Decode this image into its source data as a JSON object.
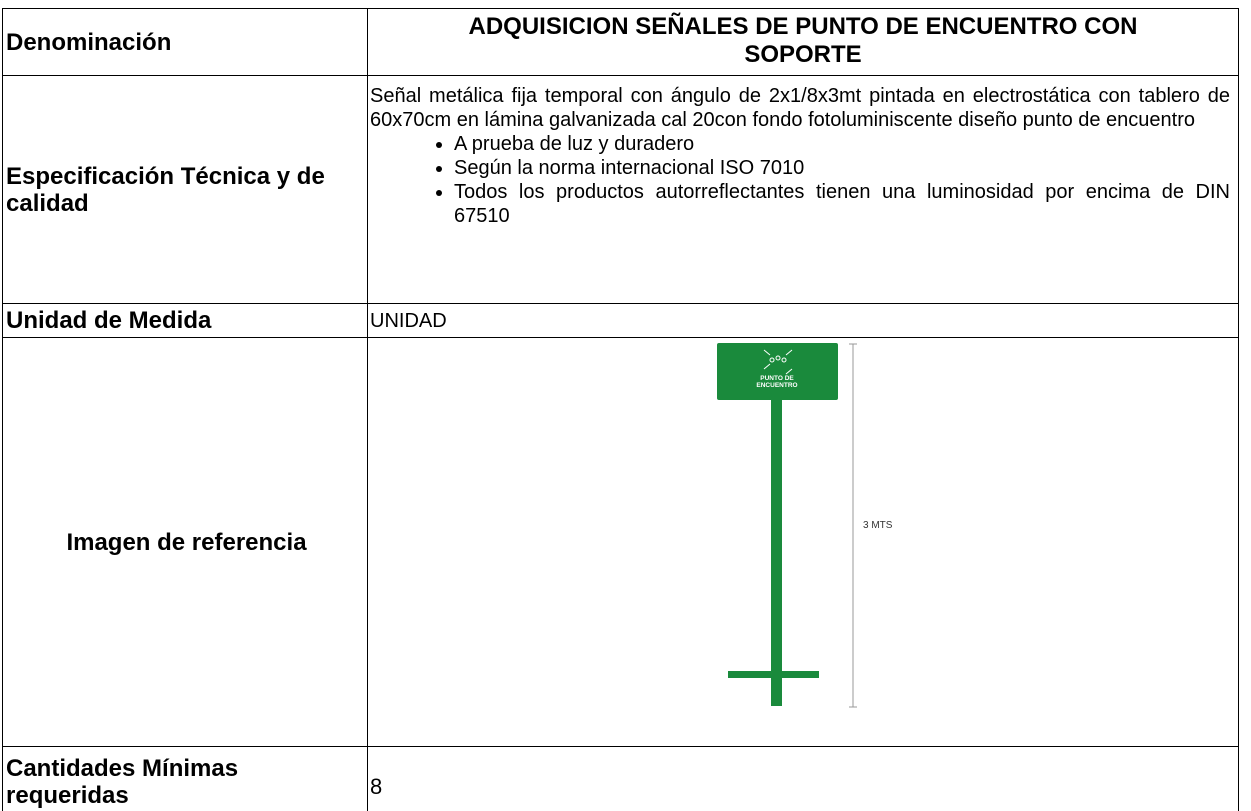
{
  "table": {
    "rows": [
      {
        "label": "Denominación",
        "value": "ADQUISICION SEÑALES DE PUNTO DE ENCUENTRO CON SOPORTE"
      },
      {
        "label": "Especificación Técnica y de calidad",
        "text": "Señal metálica fija temporal con ángulo de 2x1/8x3mt pintada en electrostática con tablero de 60x70cm en lámina galvanizada cal 20con fondo fotoluminiscente diseño punto de encuentro",
        "bullets": [
          "A prueba de luz y duradero",
          "Según la norma internacional ISO 7010",
          "Todos los productos autorreflectantes tienen una luminosidad por encima de DIN 67510"
        ]
      },
      {
        "label": "Unidad de Medida",
        "value": "UNIDAD"
      },
      {
        "label": "Imagen de referencia",
        "sign_text": [
          "PUNTO DE",
          "ENCUENTRO"
        ],
        "height_label": "3 MTS"
      },
      {
        "label": "Cantidades Mínimas requeridas",
        "value": "8"
      }
    ]
  }
}
